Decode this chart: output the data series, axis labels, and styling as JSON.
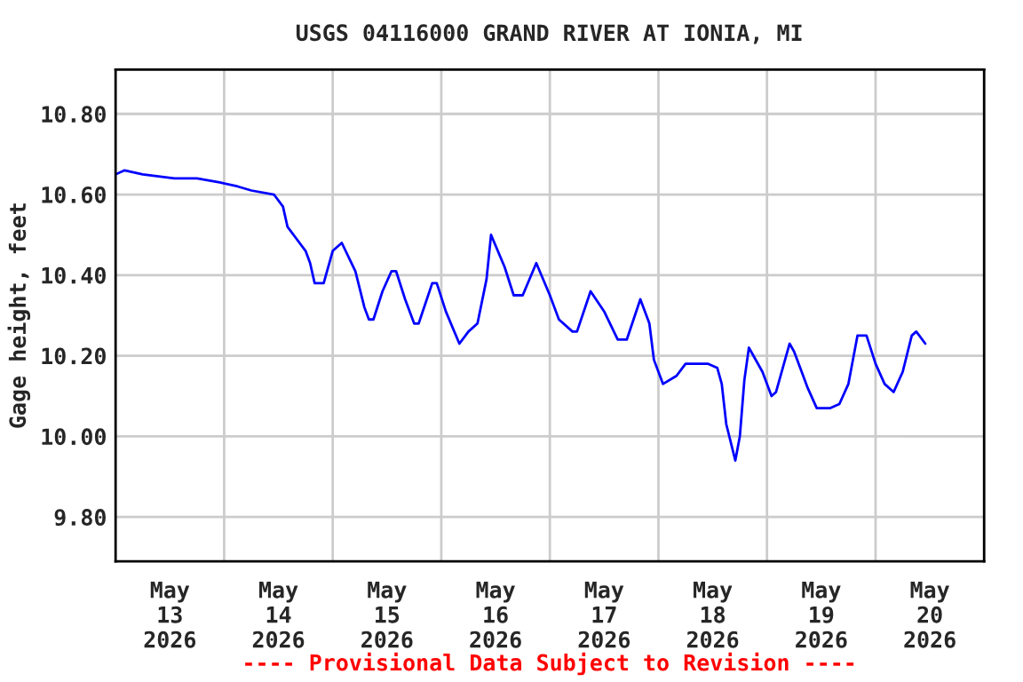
{
  "chart_data": {
    "type": "line",
    "title": "USGS 04116000 GRAND RIVER AT IONIA, MI",
    "ylabel": "Gage height, feet",
    "annotations": [
      "---- Provisional Data Subject to Revision ----"
    ],
    "x": [
      "2026-05-13T00:00",
      "2026-05-13T02:00",
      "2026-05-13T06:00",
      "2026-05-13T13:00",
      "2026-05-13T18:00",
      "2026-05-13T23:00",
      "2026-05-14T03:00",
      "2026-05-14T06:00",
      "2026-05-14T11:00",
      "2026-05-14T13:00",
      "2026-05-14T14:00",
      "2026-05-14T16:00",
      "2026-05-14T18:00",
      "2026-05-14T19:00",
      "2026-05-14T20:00",
      "2026-05-14T22:00",
      "2026-05-15T00:00",
      "2026-05-15T02:00",
      "2026-05-15T05:00",
      "2026-05-15T07:00",
      "2026-05-15T08:00",
      "2026-05-15T09:00",
      "2026-05-15T11:00",
      "2026-05-15T13:00",
      "2026-05-15T14:00",
      "2026-05-15T16:00",
      "2026-05-15T18:00",
      "2026-05-15T19:00",
      "2026-05-15T22:00",
      "2026-05-15T23:00",
      "2026-05-16T01:00",
      "2026-05-16T04:00",
      "2026-05-16T06:00",
      "2026-05-16T08:00",
      "2026-05-16T10:00",
      "2026-05-16T11:00",
      "2026-05-16T14:00",
      "2026-05-16T16:00",
      "2026-05-16T18:00",
      "2026-05-16T21:00",
      "2026-05-17T00:00",
      "2026-05-17T01:00",
      "2026-05-17T02:00",
      "2026-05-17T05:00",
      "2026-05-17T06:00",
      "2026-05-17T09:00",
      "2026-05-17T12:00",
      "2026-05-17T15:00",
      "2026-05-17T17:00",
      "2026-05-17T20:00",
      "2026-05-17T22:00",
      "2026-05-17T23:00",
      "2026-05-18T01:00",
      "2026-05-18T04:00",
      "2026-05-18T06:00",
      "2026-05-18T11:00",
      "2026-05-18T13:00",
      "2026-05-18T14:00",
      "2026-05-18T15:00",
      "2026-05-18T17:00",
      "2026-05-18T18:00",
      "2026-05-18T19:00",
      "2026-05-18T20:00",
      "2026-05-18T23:00",
      "2026-05-19T01:00",
      "2026-05-19T02:00",
      "2026-05-19T05:00",
      "2026-05-19T06:00",
      "2026-05-19T08:00",
      "2026-05-19T09:00",
      "2026-05-19T11:00",
      "2026-05-19T14:00",
      "2026-05-19T16:00",
      "2026-05-19T18:00",
      "2026-05-19T20:00",
      "2026-05-19T22:00",
      "2026-05-20T00:00",
      "2026-05-20T02:00",
      "2026-05-20T04:00",
      "2026-05-20T06:00",
      "2026-05-20T08:00",
      "2026-05-20T09:00",
      "2026-05-20T11:00"
    ],
    "series": [
      {
        "color": "#0000ff",
        "values": [
          10.65,
          10.66,
          10.65,
          10.64,
          10.64,
          10.63,
          10.62,
          10.61,
          10.6,
          10.57,
          10.52,
          10.49,
          10.46,
          10.43,
          10.38,
          10.38,
          10.46,
          10.48,
          10.41,
          10.32,
          10.29,
          10.29,
          10.36,
          10.41,
          10.41,
          10.34,
          10.28,
          10.28,
          10.38,
          10.38,
          10.31,
          10.23,
          10.26,
          10.28,
          10.39,
          10.5,
          10.42,
          10.35,
          10.35,
          10.43,
          10.35,
          10.32,
          10.29,
          10.26,
          10.26,
          10.36,
          10.31,
          10.24,
          10.24,
          10.34,
          10.28,
          10.19,
          10.13,
          10.15,
          10.18,
          10.18,
          10.17,
          10.13,
          10.03,
          9.94,
          10.0,
          10.14,
          10.22,
          10.16,
          10.1,
          10.11,
          10.23,
          10.21,
          10.15,
          10.12,
          10.07,
          10.07,
          10.08,
          10.13,
          10.25,
          10.25,
          10.18,
          10.13,
          10.11,
          10.16,
          10.25,
          10.26,
          10.23
        ]
      }
    ],
    "xlim": [
      "2026-05-13T00:00",
      "2026-05-21T00:00"
    ],
    "xticks": [
      {
        "value": "2026-05-13T12:00",
        "label": "May\n13\n2026"
      },
      {
        "value": "2026-05-14T00:00",
        "label": null
      },
      {
        "value": "2026-05-14T12:00",
        "label": "May\n14\n2026"
      },
      {
        "value": "2026-05-15T00:00",
        "label": null
      },
      {
        "value": "2026-05-15T12:00",
        "label": "May\n15\n2026"
      },
      {
        "value": "2026-05-16T00:00",
        "label": null
      },
      {
        "value": "2026-05-16T12:00",
        "label": "May\n16\n2026"
      },
      {
        "value": "2026-05-17T00:00",
        "label": null
      },
      {
        "value": "2026-05-17T12:00",
        "label": "May\n17\n2026"
      },
      {
        "value": "2026-05-18T00:00",
        "label": null
      },
      {
        "value": "2026-05-18T12:00",
        "label": "May\n18\n2026"
      },
      {
        "value": "2026-05-19T00:00",
        "label": null
      },
      {
        "value": "2026-05-19T12:00",
        "label": "May\n19\n2026"
      },
      {
        "value": "2026-05-20T00:00",
        "label": null
      },
      {
        "value": "2026-05-20T12:00",
        "label": "May\n20\n2026"
      }
    ],
    "ylim": [
      9.69,
      10.91
    ],
    "yticks": [
      {
        "value": 9.8,
        "label": "9.80"
      },
      {
        "value": 10.0,
        "label": "10.00"
      },
      {
        "value": 10.2,
        "label": "10.20"
      },
      {
        "value": 10.4,
        "label": "10.40"
      },
      {
        "value": 10.6,
        "label": "10.60"
      },
      {
        "value": 10.8,
        "label": "10.80"
      }
    ],
    "grid": true,
    "legend": false,
    "marker": "none",
    "line_style": "solid"
  }
}
